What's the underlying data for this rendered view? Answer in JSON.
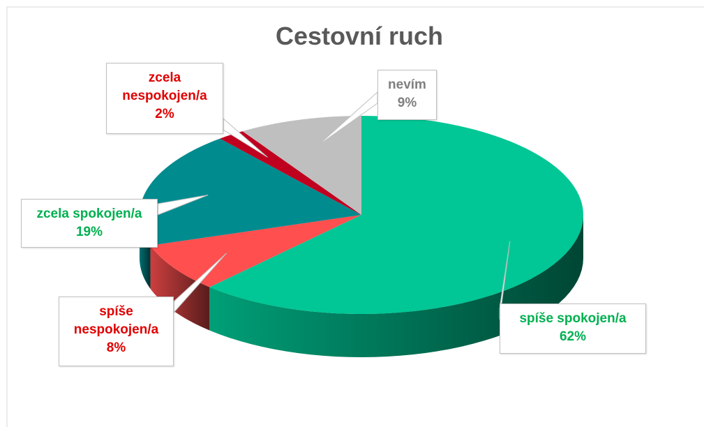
{
  "chart_data": {
    "type": "pie3d",
    "title": "Cestovní ruch",
    "categories": [
      "spíše spokojen/a",
      "spíše nespokojen/a",
      "zcela spokojen/a",
      "zcela nespokojen/a",
      "nevím"
    ],
    "values": [
      62,
      8,
      19,
      2,
      9
    ],
    "value_labels": [
      "62%",
      "8%",
      "19%",
      "2%",
      "9%"
    ],
    "colors": [
      "#00c795",
      "#ff4f4f",
      "#008b8f",
      "#c0001f",
      "#bfbfbf"
    ],
    "label_colors": [
      "#00b050",
      "#e00000",
      "#00b050",
      "#e00000",
      "#7f7f7f"
    ]
  }
}
